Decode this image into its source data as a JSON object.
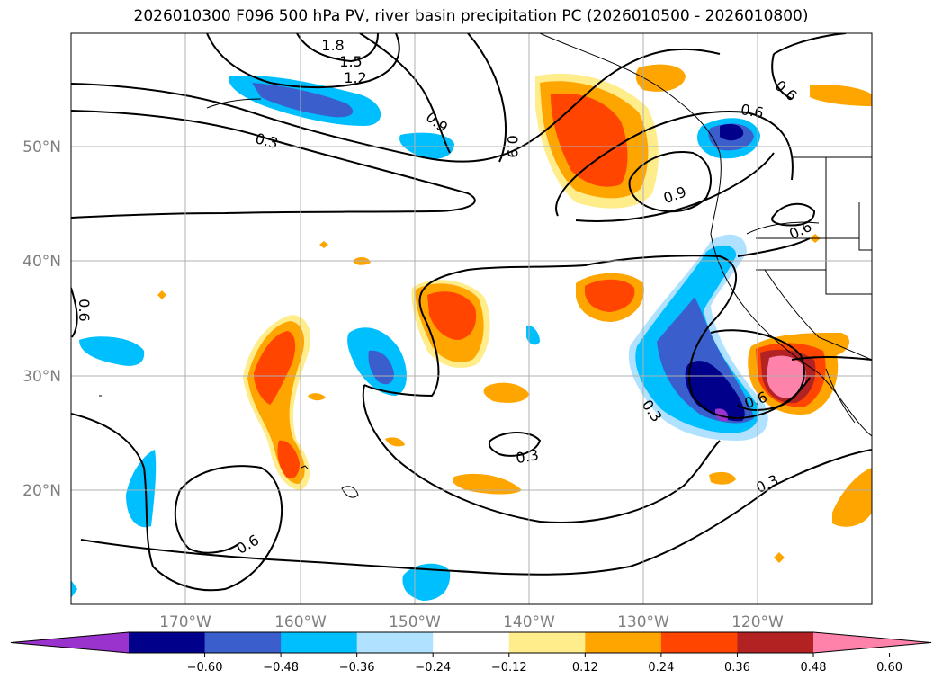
{
  "title": "2026010300 F096 500 hPa PV, river basin precipitation PC (2026010500 - 2026010800)",
  "latitude_labels": [
    "50°N",
    "40°N",
    "30°N",
    "20°N"
  ],
  "longitude_labels": [
    "170°W",
    "160°W",
    "150°W",
    "140°W",
    "130°W",
    "120°W"
  ],
  "contour_labels": [
    "1.8",
    "1.5",
    "1.2",
    "0.9",
    "0.9",
    "0.3",
    "0.6",
    "0.6",
    "0.9",
    "0.6",
    "0.3",
    "0.3",
    "0.6",
    "0.3",
    "0.6",
    "0.6"
  ],
  "colorbar": {
    "ticks": [
      "−0.60",
      "−0.48",
      "−0.36",
      "−0.24",
      "−0.12",
      "0.12",
      "0.24",
      "0.36",
      "0.48",
      "0.60"
    ],
    "colors": [
      "#9a32cd",
      "#00008b",
      "#3a5fcd",
      "#00bfff",
      "#b0e2ff",
      "#ffffff",
      "#ffec8b",
      "#ffa500",
      "#ff4500",
      "#b22222",
      "#ff82ab"
    ]
  }
}
